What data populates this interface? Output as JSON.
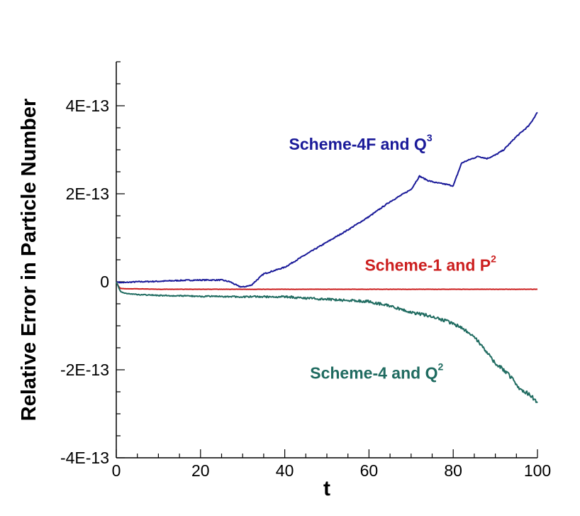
{
  "chart_data": {
    "type": "line",
    "title": "",
    "xlabel": "t",
    "ylabel": "Relative Error in Particle Number",
    "xlim": [
      0,
      100
    ],
    "ylim": [
      -4e-13,
      5e-13
    ],
    "x_ticks": [
      0,
      20,
      40,
      60,
      80,
      100
    ],
    "x_tick_labels": [
      "0",
      "20",
      "40",
      "60",
      "80",
      "100"
    ],
    "y_ticks": [
      -4e-13,
      -2e-13,
      0,
      2e-13,
      4e-13
    ],
    "y_tick_labels": [
      "-4E-13",
      "-2E-13",
      "0",
      "2E-13",
      "4E-13"
    ],
    "grid": false,
    "legend": "none",
    "series": [
      {
        "color": "#1a1a99",
        "x": [
          0,
          1,
          2,
          3,
          5,
          10,
          15,
          20,
          25,
          27,
          29,
          30,
          32,
          35,
          40,
          45,
          50,
          55,
          60,
          65,
          70,
          72,
          74,
          76,
          78,
          80,
          82,
          84,
          86,
          88,
          90,
          92,
          95,
          98,
          100
        ],
        "y": [
          0.0,
          -1.5e-15,
          -2e-15,
          -1e-15,
          0.0,
          1e-15,
          3e-15,
          4e-15,
          4e-15,
          0.0,
          -1e-14,
          -1.2e-14,
          -8e-15,
          1.8e-14,
          3.3e-14,
          6.2e-14,
          9e-14,
          1.18e-13,
          1.48e-13,
          1.82e-13,
          2.1e-13,
          2.4e-13,
          2.3e-13,
          2.25e-13,
          2.22e-13,
          2.18e-13,
          2.7e-13,
          2.78e-13,
          2.85e-13,
          2.8e-13,
          2.88e-13,
          3e-13,
          3.3e-13,
          3.55e-13,
          3.85e-13
        ]
      },
      {
        "color": "#cc1f1f",
        "x": [
          0,
          0.5,
          1,
          2,
          5,
          10,
          20,
          30,
          40,
          50,
          60,
          70,
          80,
          90,
          100
        ],
        "y": [
          0.0,
          -1e-14,
          -1.5e-14,
          -1.6e-14,
          -1.6e-14,
          -1.7e-14,
          -1.7e-14,
          -1.7e-14,
          -1.7e-14,
          -1.7e-14,
          -1.7e-14,
          -1.7e-14,
          -1.7e-14,
          -1.7e-14,
          -1.7e-14
        ]
      },
      {
        "color": "#1f6b60",
        "x": [
          0,
          1,
          2,
          5,
          10,
          20,
          30,
          40,
          50,
          55,
          60,
          65,
          70,
          75,
          80,
          82,
          85,
          88,
          90,
          92,
          94,
          96,
          98,
          100
        ],
        "y": [
          0.0,
          -2.2e-14,
          -2.6e-14,
          -2.9e-14,
          -3.1e-14,
          -3.3e-14,
          -3.4e-14,
          -3.4e-14,
          -4e-14,
          -4.2e-14,
          -4.5e-14,
          -5.5e-14,
          -7e-14,
          -7.8e-14,
          -9.5e-14,
          -1.05e-13,
          -1.25e-13,
          -1.6e-13,
          -1.85e-13,
          -2e-13,
          -2.2e-13,
          -2.45e-13,
          -2.55e-13,
          -2.75e-13
        ]
      }
    ],
    "annotations": [
      {
        "base": "Scheme-4F and Q",
        "sup": "3",
        "color": "#1a1a99",
        "x": 41,
        "y": 3e-13
      },
      {
        "base": "Scheme-1 and P",
        "sup": "2",
        "color": "#cc1f1f",
        "x": 59,
        "y": 2.5e-14
      },
      {
        "base": "Scheme-4 and Q",
        "sup": "2",
        "color": "#1f6b60",
        "x": 46,
        "y": -2.2e-13
      }
    ]
  }
}
